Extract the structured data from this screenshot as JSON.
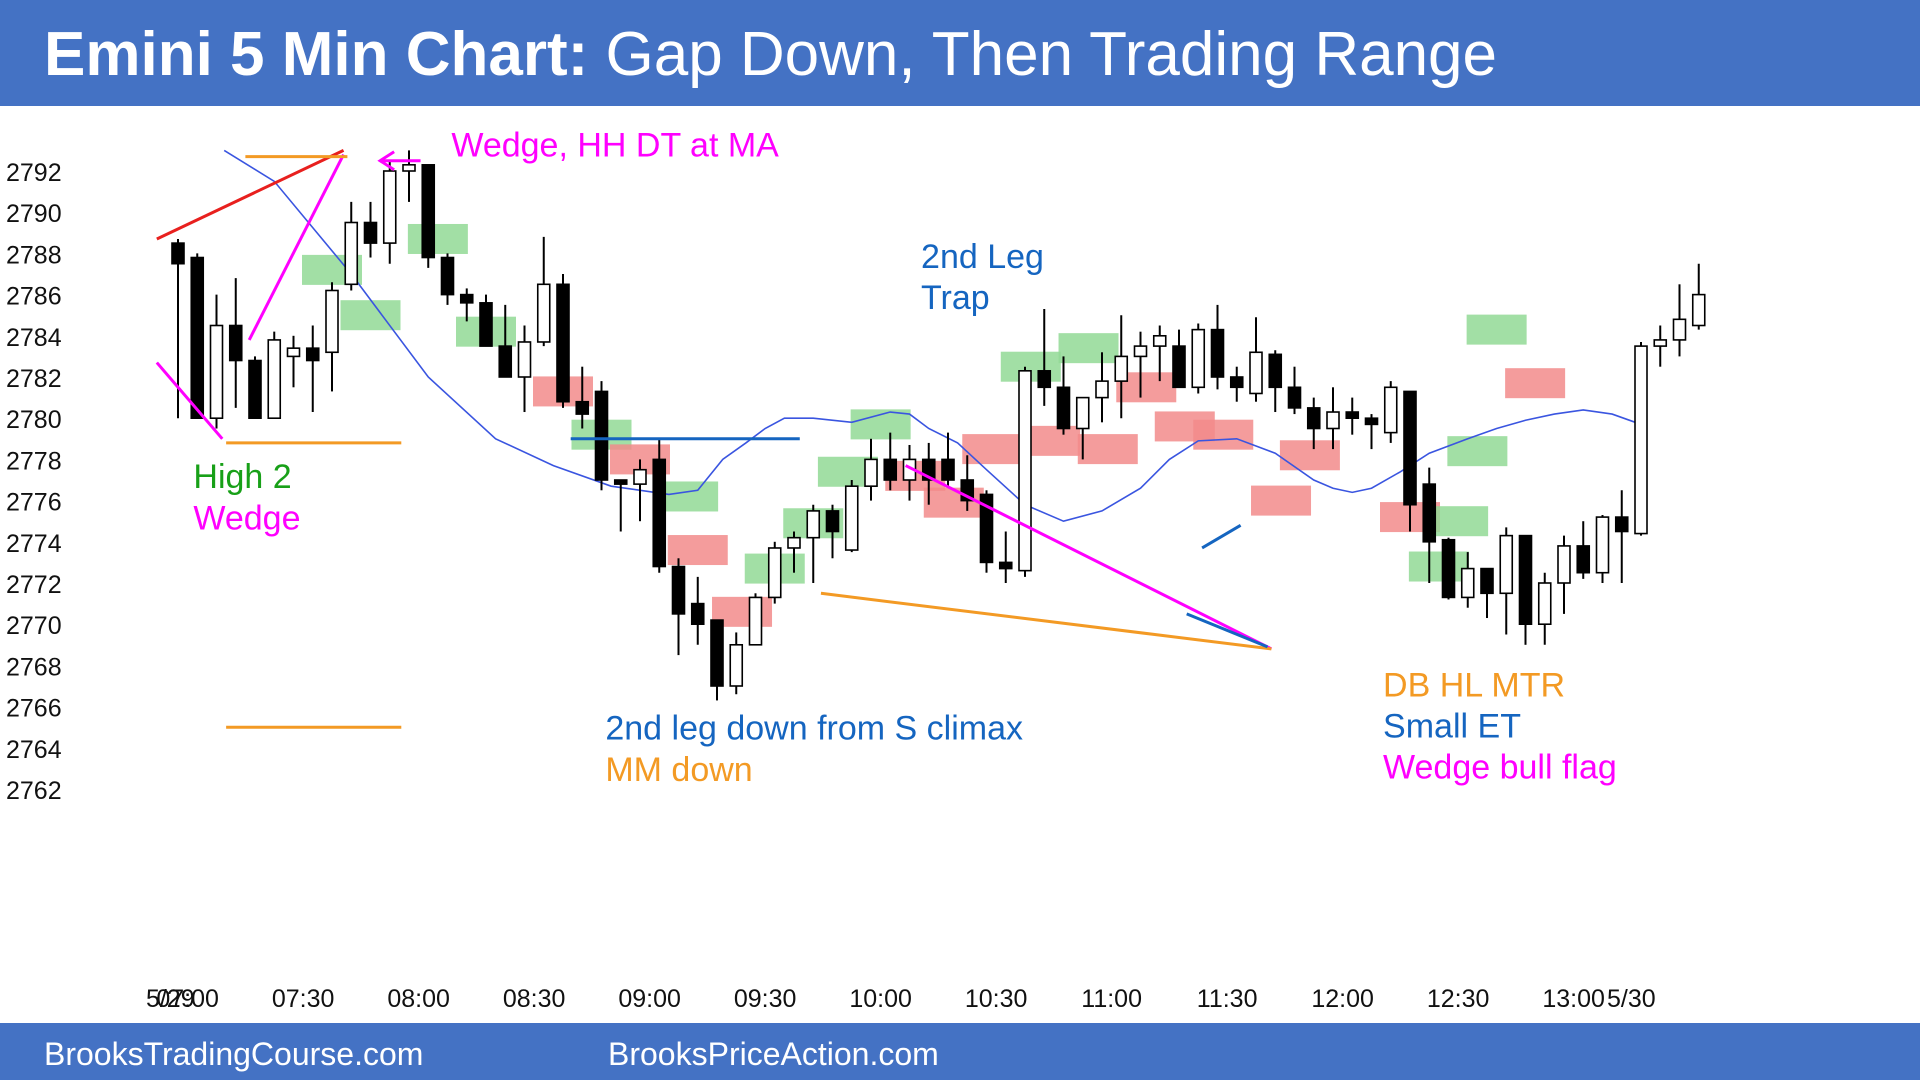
{
  "header": {
    "title_bold": "Emini 5 Min Chart:",
    "title_rest": " Gap Down, Then Trading Range"
  },
  "footer": {
    "left_link": "BrooksTradingCourse.com",
    "right_link": "BrooksPriceAction.com"
  },
  "colors": {
    "header_bg": "#4472c4",
    "bull_box": "#92d995",
    "bear_box": "#f28b8b",
    "moving_average": "#3a55e0",
    "magenta": "#ff00ff",
    "orange": "#f39a24",
    "red": "#e8201e",
    "blue": "#1565c0",
    "green": "#18a018"
  },
  "chart_data": {
    "type": "candlestick",
    "title": "Emini 5 Min Chart: Gap Down, Then Trading Range",
    "ylim": [
      2760.5,
      2794.5
    ],
    "yticks": [
      2762,
      2764,
      2766,
      2768,
      2770,
      2772,
      2774,
      2776,
      2778,
      2780,
      2782,
      2784,
      2786,
      2788,
      2790,
      2792
    ],
    "xticks": [
      {
        "i": -0.4,
        "label": "5/29"
      },
      {
        "i": 0.5,
        "label": "07:00"
      },
      {
        "i": 6.5,
        "label": "07:30"
      },
      {
        "i": 12.5,
        "label": "08:00"
      },
      {
        "i": 18.5,
        "label": "08:30"
      },
      {
        "i": 24.5,
        "label": "09:00"
      },
      {
        "i": 30.5,
        "label": "09:30"
      },
      {
        "i": 36.5,
        "label": "10:00"
      },
      {
        "i": 42.5,
        "label": "10:30"
      },
      {
        "i": 48.5,
        "label": "11:00"
      },
      {
        "i": 54.5,
        "label": "11:30"
      },
      {
        "i": 60.5,
        "label": "12:00"
      },
      {
        "i": 66.5,
        "label": "12:30"
      },
      {
        "i": 72.5,
        "label": "13:00"
      },
      {
        "i": 75.5,
        "label": "5/30"
      }
    ],
    "bars": [
      [
        2788.5,
        2788.7,
        2780,
        2787.5
      ],
      [
        2787.8,
        2788,
        2780,
        2780
      ],
      [
        2780,
        2786,
        2779.5,
        2784.5
      ],
      [
        2784.5,
        2786.8,
        2780.5,
        2782.8
      ],
      [
        2782.8,
        2783,
        2780,
        2780
      ],
      [
        2780,
        2784.2,
        2780,
        2783.8
      ],
      [
        2783,
        2784,
        2781.5,
        2783.4
      ],
      [
        2783.4,
        2784.5,
        2780.3,
        2782.8
      ],
      [
        2783.2,
        2786.6,
        2781.3,
        2786.2
      ],
      [
        2786.5,
        2790.5,
        2786.2,
        2789.5
      ],
      [
        2789.5,
        2790.5,
        2787.8,
        2788.5
      ],
      [
        2788.5,
        2792.5,
        2787.5,
        2792
      ],
      [
        2792,
        2793,
        2790.5,
        2792.3
      ],
      [
        2792.3,
        2792.3,
        2787.3,
        2787.8
      ],
      [
        2787.8,
        2788,
        2785.5,
        2786
      ],
      [
        2786,
        2786.3,
        2784.7,
        2785.6
      ],
      [
        2785.6,
        2786,
        2783.8,
        2783.5
      ],
      [
        2783.5,
        2785.5,
        2782,
        2782
      ],
      [
        2782,
        2784.5,
        2780.3,
        2783.7
      ],
      [
        2783.7,
        2788.8,
        2783.5,
        2786.5
      ],
      [
        2786.5,
        2787,
        2780.5,
        2780.8
      ],
      [
        2780.8,
        2782.5,
        2779.5,
        2780.2
      ],
      [
        2781.3,
        2781.8,
        2776.5,
        2777
      ],
      [
        2777,
        2777,
        2774.5,
        2776.8
      ],
      [
        2776.8,
        2778,
        2775,
        2777.5
      ],
      [
        2778,
        2779,
        2772.5,
        2772.8
      ],
      [
        2772.8,
        2773.2,
        2768.5,
        2770.5
      ],
      [
        2771,
        2772.3,
        2769,
        2770
      ],
      [
        2770.2,
        2770.2,
        2766.3,
        2767
      ],
      [
        2767,
        2769.6,
        2766.6,
        2769
      ],
      [
        2769,
        2771.5,
        2769,
        2771.3
      ],
      [
        2771.3,
        2774,
        2771,
        2773.7
      ],
      [
        2773.7,
        2774.5,
        2772.5,
        2774.2
      ],
      [
        2774.2,
        2775.8,
        2772,
        2775.5
      ],
      [
        2775.5,
        2775.8,
        2773.2,
        2774.5
      ],
      [
        2773.6,
        2777,
        2773.5,
        2776.7
      ],
      [
        2776.7,
        2779,
        2776,
        2778
      ],
      [
        2778,
        2779.3,
        2776.5,
        2777
      ],
      [
        2777,
        2778.7,
        2776,
        2778
      ],
      [
        2778,
        2778.8,
        2775.8,
        2777
      ],
      [
        2778,
        2779.3,
        2776.7,
        2777
      ],
      [
        2777,
        2778.2,
        2775.5,
        2776
      ],
      [
        2776.3,
        2776.5,
        2772.5,
        2773
      ],
      [
        2773,
        2774.5,
        2772,
        2772.7
      ],
      [
        2772.6,
        2782.5,
        2772.3,
        2782.3
      ],
      [
        2782.3,
        2785.3,
        2780.6,
        2781.5
      ],
      [
        2781.5,
        2783,
        2779.2,
        2779.5
      ],
      [
        2779.5,
        2781,
        2778,
        2781
      ],
      [
        2781,
        2783.2,
        2779.8,
        2781.8
      ],
      [
        2781.8,
        2785,
        2780,
        2783
      ],
      [
        2783,
        2784.2,
        2781,
        2783.5
      ],
      [
        2783.5,
        2784.5,
        2781.8,
        2784
      ],
      [
        2783.5,
        2784.3,
        2781.5,
        2781.5
      ],
      [
        2781.5,
        2784.6,
        2781.2,
        2784.3
      ],
      [
        2784.3,
        2785.5,
        2781.4,
        2782
      ],
      [
        2782,
        2782.5,
        2780.8,
        2781.5
      ],
      [
        2781.2,
        2784.9,
        2780.8,
        2783.2
      ],
      [
        2783.1,
        2783.3,
        2780.3,
        2781.5
      ],
      [
        2781.5,
        2782.5,
        2780.2,
        2780.5
      ],
      [
        2780.5,
        2781,
        2778.5,
        2779.5
      ],
      [
        2779.5,
        2781.5,
        2778.5,
        2780.3
      ],
      [
        2780.3,
        2781,
        2779.2,
        2780
      ],
      [
        2780,
        2780.2,
        2778.5,
        2779.7
      ],
      [
        2779.3,
        2781.8,
        2778.8,
        2781.5
      ],
      [
        2781.3,
        2781.3,
        2774.5,
        2775.8
      ],
      [
        2776.8,
        2777.6,
        2772,
        2774
      ],
      [
        2774.1,
        2774.2,
        2771.2,
        2771.3
      ],
      [
        2771.3,
        2773.5,
        2770.8,
        2772.7
      ],
      [
        2772.7,
        2772.7,
        2770.3,
        2771.5
      ],
      [
        2771.5,
        2774.7,
        2769.5,
        2774.3
      ],
      [
        2774.3,
        2774.3,
        2769,
        2770
      ],
      [
        2770,
        2772.5,
        2769,
        2772
      ],
      [
        2772,
        2774.3,
        2770.5,
        2773.8
      ],
      [
        2773.8,
        2775,
        2772.2,
        2772.5
      ],
      [
        2772.5,
        2775.3,
        2772,
        2775.2
      ],
      [
        2775.2,
        2776.5,
        2772,
        2774.5
      ],
      [
        2774.4,
        2783.7,
        2774.3,
        2783.5
      ],
      [
        2783.5,
        2784.5,
        2782.5,
        2783.8
      ],
      [
        2783.8,
        2786.5,
        2783,
        2784.8
      ],
      [
        2784.5,
        2787.5,
        2784.3,
        2786
      ]
    ],
    "moving_average": [
      [
        2.4,
        2793
      ],
      [
        5,
        2791.5
      ],
      [
        9,
        2787
      ],
      [
        13,
        2782
      ],
      [
        16.5,
        2779
      ],
      [
        19.5,
        2777.7
      ],
      [
        22.5,
        2776.7
      ],
      [
        25.5,
        2776.3
      ],
      [
        27,
        2776.5
      ],
      [
        28.3,
        2778
      ],
      [
        29.5,
        2778.8
      ],
      [
        30.5,
        2779.5
      ],
      [
        31.5,
        2780
      ],
      [
        33,
        2780
      ],
      [
        35,
        2779.8
      ],
      [
        37,
        2780.3
      ],
      [
        38,
        2780.2
      ],
      [
        39,
        2779.5
      ],
      [
        40.5,
        2778.8
      ],
      [
        42,
        2777.5
      ],
      [
        44,
        2775.8
      ],
      [
        46,
        2775
      ],
      [
        48,
        2775.5
      ],
      [
        50,
        2776.6
      ],
      [
        51.5,
        2778
      ],
      [
        53,
        2778.9
      ],
      [
        55,
        2779
      ],
      [
        57,
        2778.3
      ],
      [
        59,
        2777
      ],
      [
        60,
        2776.6
      ],
      [
        61,
        2776.4
      ],
      [
        62,
        2776.6
      ],
      [
        63.5,
        2777.4
      ],
      [
        65,
        2778.3
      ],
      [
        67,
        2779
      ],
      [
        68.5,
        2779.5
      ],
      [
        70,
        2779.9
      ],
      [
        71.5,
        2780.2
      ],
      [
        73,
        2780.4
      ],
      [
        74.5,
        2780.2
      ],
      [
        76.3,
        2779.6
      ]
    ],
    "signal_boxes": [
      {
        "i": 8,
        "price": 2787.2,
        "color": "bull"
      },
      {
        "i": 10,
        "price": 2785,
        "color": "bull"
      },
      {
        "i": 13.5,
        "price": 2788.7,
        "color": "bull"
      },
      {
        "i": 16,
        "price": 2784.2,
        "color": "bull"
      },
      {
        "i": 20,
        "price": 2781.3,
        "color": "bear"
      },
      {
        "i": 22,
        "price": 2779.2,
        "color": "bull"
      },
      {
        "i": 24,
        "price": 2778,
        "color": "bear"
      },
      {
        "i": 26.5,
        "price": 2776.2,
        "color": "bull"
      },
      {
        "i": 27,
        "price": 2773.6,
        "color": "bear"
      },
      {
        "i": 29.3,
        "price": 2770.6,
        "color": "bear"
      },
      {
        "i": 31,
        "price": 2772.7,
        "color": "bull"
      },
      {
        "i": 33,
        "price": 2774.9,
        "color": "bull"
      },
      {
        "i": 34.8,
        "price": 2777.4,
        "color": "bull"
      },
      {
        "i": 36.5,
        "price": 2779.7,
        "color": "bull"
      },
      {
        "i": 38.3,
        "price": 2777.2,
        "color": "bear"
      },
      {
        "i": 40.3,
        "price": 2775.9,
        "color": "bear"
      },
      {
        "i": 42.3,
        "price": 2778.5,
        "color": "bear"
      },
      {
        "i": 44.3,
        "price": 2782.5,
        "color": "bull"
      },
      {
        "i": 45.3,
        "price": 2778.9,
        "color": "bear"
      },
      {
        "i": 47.3,
        "price": 2783.4,
        "color": "bull"
      },
      {
        "i": 48.3,
        "price": 2778.5,
        "color": "bear"
      },
      {
        "i": 50.3,
        "price": 2781.5,
        "color": "bear"
      },
      {
        "i": 52.3,
        "price": 2779.6,
        "color": "bear"
      },
      {
        "i": 54.3,
        "price": 2779.2,
        "color": "bear"
      },
      {
        "i": 57.3,
        "price": 2776,
        "color": "bear"
      },
      {
        "i": 58.8,
        "price": 2778.2,
        "color": "bear"
      },
      {
        "i": 64,
        "price": 2775.2,
        "color": "bear"
      },
      {
        "i": 65.5,
        "price": 2772.8,
        "color": "bull"
      },
      {
        "i": 66.5,
        "price": 2775,
        "color": "bull"
      },
      {
        "i": 67.5,
        "price": 2778.4,
        "color": "bull"
      },
      {
        "i": 68.5,
        "price": 2784.3,
        "color": "bull"
      },
      {
        "i": 70.5,
        "price": 2781.7,
        "color": "bear"
      }
    ],
    "lines": [
      {
        "color": "red",
        "points": [
          [
            -1.1,
            2788.7
          ],
          [
            8.6,
            2793
          ]
        ]
      },
      {
        "color": "magenta",
        "points": [
          [
            -1.1,
            2782.7
          ],
          [
            2.3,
            2779
          ]
        ]
      },
      {
        "color": "magenta",
        "points": [
          [
            3.7,
            2783.8
          ],
          [
            8.6,
            2792.8
          ]
        ]
      },
      {
        "color": "orange",
        "points": [
          [
            3.5,
            2792.7
          ],
          [
            8.8,
            2792.7
          ]
        ]
      },
      {
        "color": "orange",
        "points": [
          [
            2.5,
            2778.8
          ],
          [
            11.6,
            2778.8
          ]
        ]
      },
      {
        "color": "orange",
        "points": [
          [
            2.5,
            2765
          ]
        ],
        "to": [
          11.6,
          2765
        ]
      },
      {
        "color": "blue",
        "points": [
          [
            20.4,
            2779
          ],
          [
            32.3,
            2779
          ]
        ]
      },
      {
        "color": "magenta",
        "points": [
          [
            37.8,
            2777.7
          ],
          [
            56.8,
            2768.8
          ]
        ]
      },
      {
        "color": "orange",
        "points": [
          [
            33.4,
            2771.5
          ],
          [
            56.8,
            2768.8
          ]
        ]
      },
      {
        "color": "blue",
        "points": [
          [
            52.4,
            2770.5
          ],
          [
            56.6,
            2768.9
          ]
        ]
      },
      {
        "color": "blue",
        "points": [
          [
            53.2,
            2773.7
          ],
          [
            55.2,
            2774.8
          ]
        ]
      },
      {
        "color": "magenta",
        "points": [
          [
            12.6,
            2792.5
          ],
          [
            10.5,
            2792.5
          ]
        ]
      }
    ],
    "annotations": [
      {
        "text": "Wedge, HH DT at MA",
        "color": "magenta",
        "i": 14.2,
        "price": 2792.7
      },
      {
        "text": "High 2",
        "color": "green",
        "i": 0.8,
        "price": 2776.6
      },
      {
        "text": "Wedge",
        "color": "magenta",
        "i": 0.8,
        "price": 2774.6
      },
      {
        "text": "2nd Leg",
        "color": "blue",
        "i": 38.6,
        "price": 2787.3
      },
      {
        "text": "Trap",
        "color": "blue",
        "i": 38.6,
        "price": 2785.3
      },
      {
        "text": "2nd leg down from S climax",
        "color": "blue",
        "i": 22.2,
        "price": 2764.4
      },
      {
        "text": "MM down",
        "color": "orange",
        "i": 22.2,
        "price": 2762.4
      },
      {
        "text": "DB HL MTR",
        "color": "orange",
        "i": 62.6,
        "price": 2766.5
      },
      {
        "text": "Small ET",
        "color": "blue",
        "i": 62.6,
        "price": 2764.5
      },
      {
        "text": "Wedge bull flag",
        "color": "magenta",
        "i": 62.6,
        "price": 2762.5
      }
    ]
  }
}
